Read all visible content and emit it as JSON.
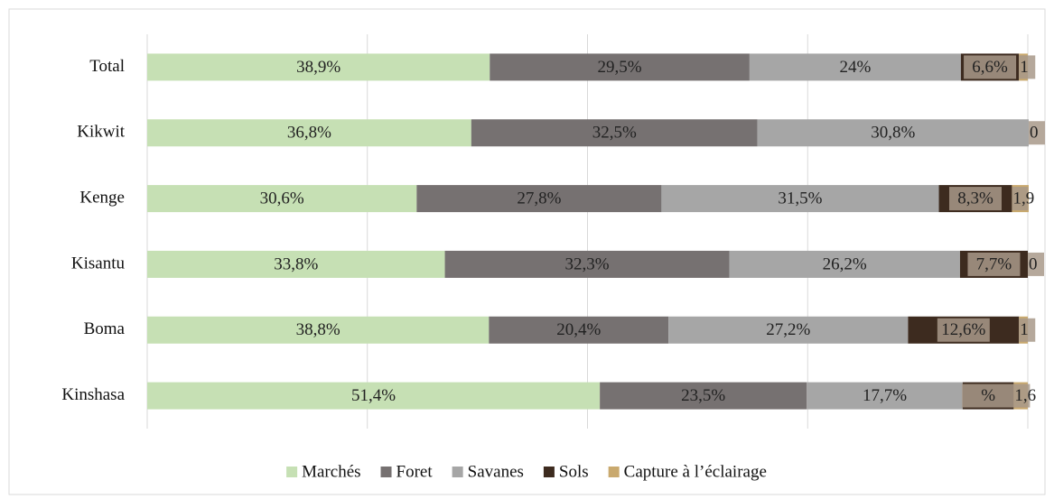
{
  "chart_data": {
    "type": "stacked-bar-horizontal",
    "categories": [
      "Total",
      "Kikwit",
      "Kenge",
      "Kisantu",
      "Boma",
      "Kinshasa"
    ],
    "series": [
      {
        "name": "Marchés",
        "color": "#c6e0b4",
        "values": [
          38.9,
          36.8,
          30.6,
          33.8,
          38.8,
          51.4
        ],
        "value_labels": [
          "38,9%",
          "36,8%",
          "30,6%",
          "33,8%",
          "38,8%",
          "51,4%"
        ]
      },
      {
        "name": "Foret",
        "color": "#767171",
        "values": [
          29.5,
          32.5,
          27.8,
          32.3,
          20.4,
          23.5
        ],
        "value_labels": [
          "29,5%",
          "32,5%",
          "27,8%",
          "32,3%",
          "20,4%",
          "23,5%"
        ]
      },
      {
        "name": "Savanes",
        "color": "#a6a6a6",
        "values": [
          24,
          30.8,
          31.5,
          26.2,
          27.2,
          17.7
        ],
        "value_labels": [
          "24%",
          "30,8%",
          "31,5%",
          "26,2%",
          "27,2%",
          "17,7%"
        ]
      },
      {
        "name": "Sols",
        "color": "#3d2b1f",
        "values": [
          6.6,
          null,
          8.3,
          7.7,
          12.6,
          5.8
        ],
        "value_labels": [
          "6,6%",
          null,
          "8,3%",
          "7,7%",
          "12,6%",
          "%"
        ]
      },
      {
        "name": "Capture à l’éclairage",
        "color": "#c9a96e",
        "values": [
          1,
          0,
          1.9,
          0,
          1,
          1.6
        ],
        "value_labels": [
          "1",
          "0",
          "1,9",
          "0",
          "1",
          "1,6"
        ]
      }
    ],
    "xlim": [
      0,
      100
    ],
    "xticks": [
      0,
      25,
      50,
      75,
      100
    ],
    "grid": true,
    "legend": "bottom"
  }
}
